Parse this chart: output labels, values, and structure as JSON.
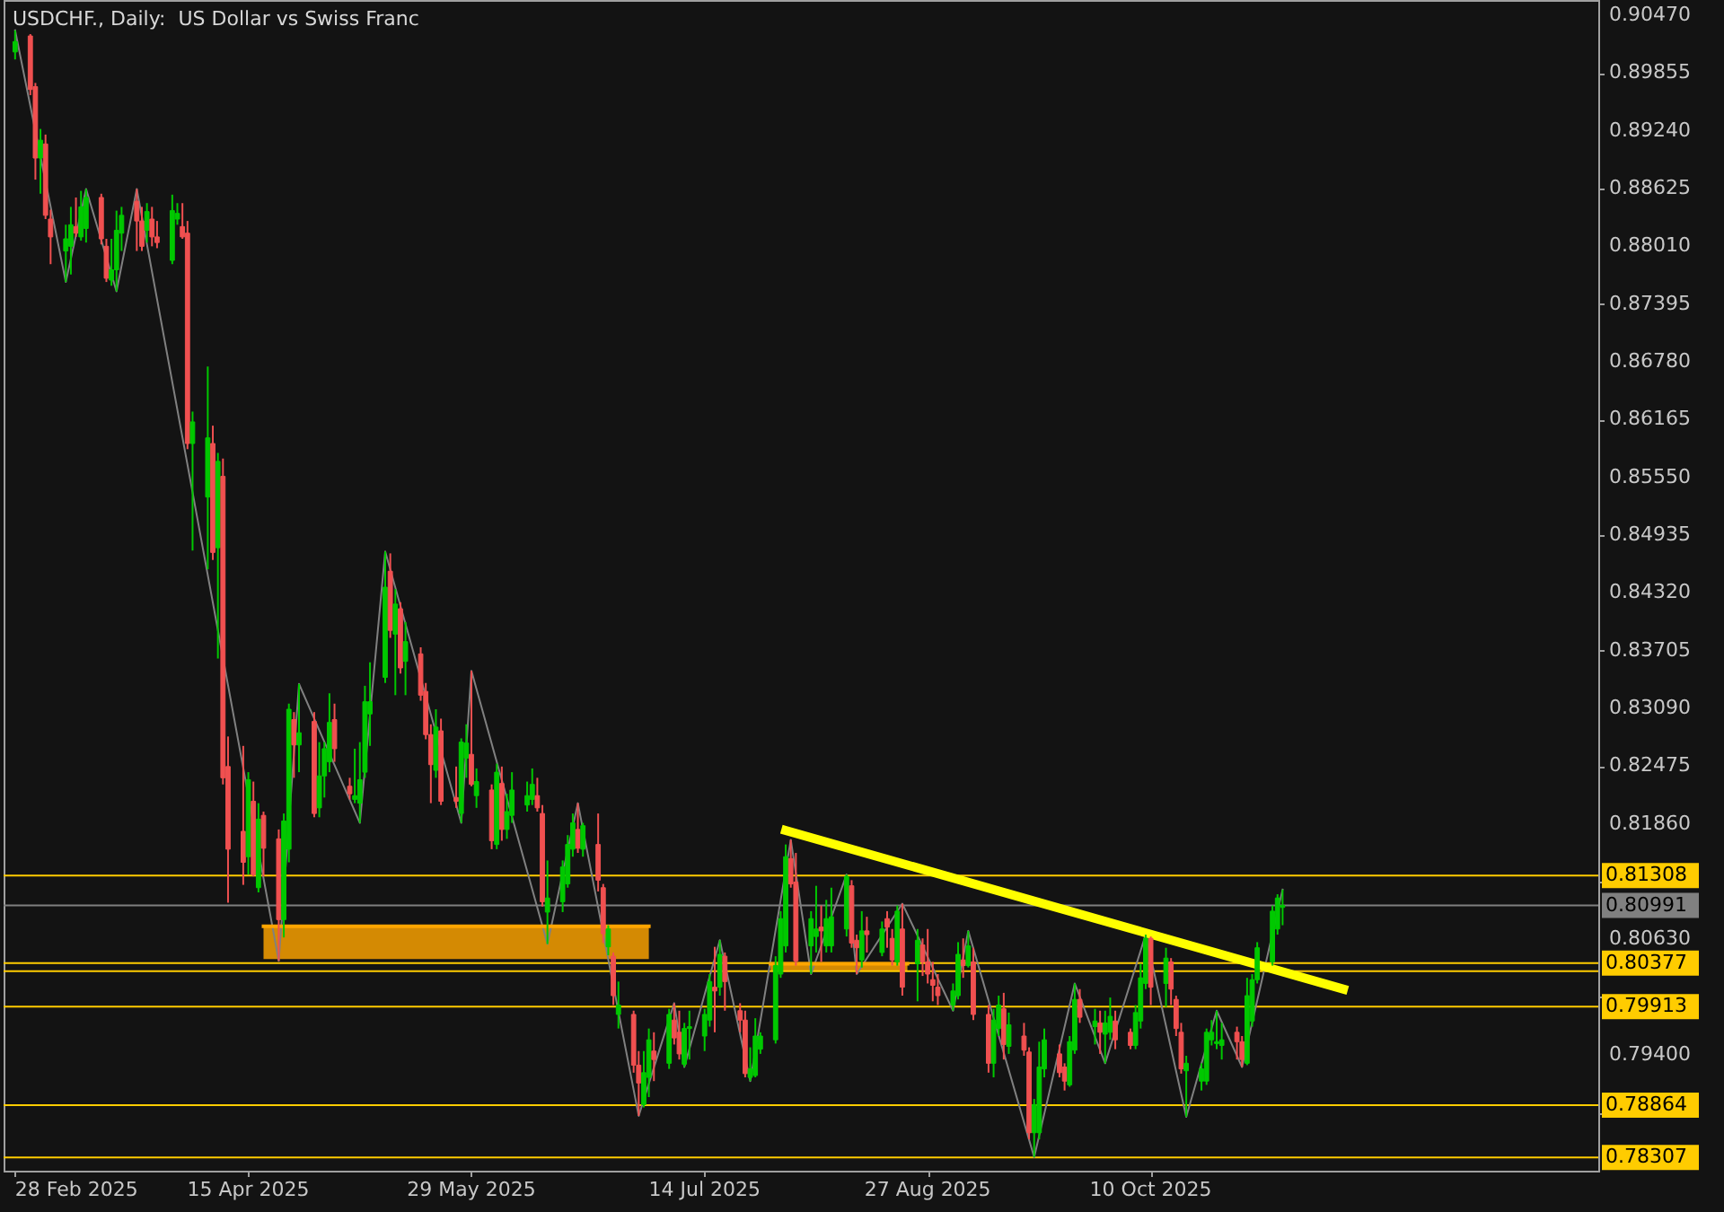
{
  "chart_data": {
    "type": "candlestick",
    "title": "USDCHF., Daily:  US Dollar vs Swiss Franc",
    "x": [
      "2025-02-28",
      "2025-03-03",
      "2025-03-04",
      "2025-03-05",
      "2025-03-06",
      "2025-03-07",
      "2025-03-10",
      "2025-03-11",
      "2025-03-12",
      "2025-03-13",
      "2025-03-14",
      "2025-03-17",
      "2025-03-18",
      "2025-03-19",
      "2025-03-20",
      "2025-03-21",
      "2025-03-24",
      "2025-03-25",
      "2025-03-26",
      "2025-03-27",
      "2025-03-28",
      "2025-03-31",
      "2025-04-01",
      "2025-04-02",
      "2025-04-03",
      "2025-04-04",
      "2025-04-07",
      "2025-04-08",
      "2025-04-09",
      "2025-04-10",
      "2025-04-11",
      "2025-04-14",
      "2025-04-15",
      "2025-04-16",
      "2025-04-17",
      "2025-04-18",
      "2025-04-21",
      "2025-04-22",
      "2025-04-23",
      "2025-04-24",
      "2025-04-25",
      "2025-04-28",
      "2025-04-29",
      "2025-04-30",
      "2025-05-01",
      "2025-05-02",
      "2025-05-05",
      "2025-05-06",
      "2025-05-07",
      "2025-05-08",
      "2025-05-09",
      "2025-05-12",
      "2025-05-13",
      "2025-05-14",
      "2025-05-15",
      "2025-05-16",
      "2025-05-19",
      "2025-05-20",
      "2025-05-21",
      "2025-05-22",
      "2025-05-23",
      "2025-05-26",
      "2025-05-27",
      "2025-05-28",
      "2025-05-29",
      "2025-05-30",
      "2025-06-02",
      "2025-06-03",
      "2025-06-04",
      "2025-06-05",
      "2025-06-06",
      "2025-06-09",
      "2025-06-10",
      "2025-06-11",
      "2025-06-12",
      "2025-06-13",
      "2025-06-16",
      "2025-06-17",
      "2025-06-18",
      "2025-06-19",
      "2025-06-20",
      "2025-06-23",
      "2025-06-24",
      "2025-06-25",
      "2025-06-26",
      "2025-06-27",
      "2025-06-30",
      "2025-07-01",
      "2025-07-02",
      "2025-07-03",
      "2025-07-04",
      "2025-07-07",
      "2025-07-08",
      "2025-07-09",
      "2025-07-10",
      "2025-07-11",
      "2025-07-14",
      "2025-07-15",
      "2025-07-16",
      "2025-07-17",
      "2025-07-18",
      "2025-07-21",
      "2025-07-22",
      "2025-07-23",
      "2025-07-24",
      "2025-07-25",
      "2025-07-28",
      "2025-07-29",
      "2025-07-30",
      "2025-07-31",
      "2025-08-01",
      "2025-08-04",
      "2025-08-05",
      "2025-08-06",
      "2025-08-07",
      "2025-08-08",
      "2025-08-11",
      "2025-08-12",
      "2025-08-13",
      "2025-08-14",
      "2025-08-15",
      "2025-08-18",
      "2025-08-19",
      "2025-08-20",
      "2025-08-21",
      "2025-08-22",
      "2025-08-25",
      "2025-08-26",
      "2025-08-27",
      "2025-08-28",
      "2025-08-29",
      "2025-09-01",
      "2025-09-02",
      "2025-09-03",
      "2025-09-04",
      "2025-09-05",
      "2025-09-08",
      "2025-09-09",
      "2025-09-10",
      "2025-09-11",
      "2025-09-12",
      "2025-09-15",
      "2025-09-16",
      "2025-09-17",
      "2025-09-18",
      "2025-09-19",
      "2025-09-22",
      "2025-09-23",
      "2025-09-24",
      "2025-09-25",
      "2025-09-26",
      "2025-09-29",
      "2025-09-30",
      "2025-10-01",
      "2025-10-02",
      "2025-10-03",
      "2025-10-06",
      "2025-10-07",
      "2025-10-08",
      "2025-10-09",
      "2025-10-10",
      "2025-10-13",
      "2025-10-14",
      "2025-10-15",
      "2025-10-16",
      "2025-10-17",
      "2025-10-20",
      "2025-10-21",
      "2025-10-22",
      "2025-10-23",
      "2025-10-24",
      "2025-10-27",
      "2025-10-28",
      "2025-10-29",
      "2025-10-30",
      "2025-10-31",
      "2025-11-03",
      "2025-11-04",
      "2025-11-05"
    ],
    "ohlc": [
      [
        0.9008,
        0.9031,
        0.9,
        0.9019
      ],
      [
        0.9025,
        0.9027,
        0.8962,
        0.8968
      ],
      [
        0.8971,
        0.8975,
        0.8872,
        0.8895
      ],
      [
        0.8895,
        0.8926,
        0.8857,
        0.8914
      ],
      [
        0.891,
        0.892,
        0.883,
        0.8834
      ],
      [
        0.883,
        0.884,
        0.8782,
        0.8811
      ],
      [
        0.8796,
        0.8824,
        0.8763,
        0.8809
      ],
      [
        0.8801,
        0.8843,
        0.8771,
        0.8824
      ],
      [
        0.8822,
        0.8853,
        0.8811,
        0.8815
      ],
      [
        0.8811,
        0.886,
        0.8807,
        0.8843
      ],
      [
        0.882,
        0.8862,
        0.8805,
        0.8853
      ],
      [
        0.8853,
        0.8857,
        0.8803,
        0.8809
      ],
      [
        0.8801,
        0.8809,
        0.8763,
        0.8767
      ],
      [
        0.8765,
        0.8809,
        0.8759,
        0.8776
      ],
      [
        0.8776,
        0.8839,
        0.8753,
        0.8818
      ],
      [
        0.8815,
        0.8843,
        0.8796,
        0.8834
      ],
      [
        0.8849,
        0.8862,
        0.8796,
        0.8828
      ],
      [
        0.8828,
        0.8843,
        0.8796,
        0.8801
      ],
      [
        0.8818,
        0.8847,
        0.8805,
        0.8838
      ],
      [
        0.883,
        0.8843,
        0.8801,
        0.8811
      ],
      [
        0.8811,
        0.8828,
        0.8799,
        0.8805
      ],
      [
        0.8786,
        0.8856,
        0.8782,
        0.8839
      ],
      [
        0.883,
        0.8847,
        0.8824,
        0.8836
      ],
      [
        0.8822,
        0.8847,
        0.8809,
        0.8811
      ],
      [
        0.8815,
        0.8828,
        0.8585,
        0.8591
      ],
      [
        0.8591,
        0.8625,
        0.8477,
        0.8614
      ],
      [
        0.8534,
        0.8673,
        0.8457,
        0.8597
      ],
      [
        0.8591,
        0.861,
        0.8467,
        0.8475
      ],
      [
        0.848,
        0.8581,
        0.8362,
        0.8572
      ],
      [
        0.8556,
        0.8575,
        0.8228,
        0.8235
      ],
      [
        0.8247,
        0.8279,
        0.8102,
        0.8159
      ],
      [
        0.8178,
        0.8269,
        0.8121,
        0.8145
      ],
      [
        0.8151,
        0.8241,
        0.8132,
        0.8233
      ],
      [
        0.821,
        0.8231,
        0.813,
        0.8132
      ],
      [
        0.8118,
        0.8208,
        0.8113,
        0.8191
      ],
      [
        0.8195,
        0.8199,
        0.813,
        0.816
      ],
      [
        0.817,
        0.818,
        0.804,
        0.8084
      ],
      [
        0.8084,
        0.8197,
        0.8065,
        0.8189
      ],
      [
        0.8159,
        0.8314,
        0.8145,
        0.8308
      ],
      [
        0.8297,
        0.8305,
        0.8235,
        0.827
      ],
      [
        0.827,
        0.8335,
        0.8241,
        0.8283
      ],
      [
        0.8295,
        0.8305,
        0.8193,
        0.8197
      ],
      [
        0.8203,
        0.8273,
        0.8193,
        0.8237
      ],
      [
        0.8237,
        0.8273,
        0.8214,
        0.8266
      ],
      [
        0.8252,
        0.8325,
        0.8241,
        0.8294
      ],
      [
        0.8297,
        0.8314,
        0.8252,
        0.8266
      ],
      [
        0.8226,
        0.8235,
        0.8212,
        0.8218
      ],
      [
        0.8212,
        0.8266,
        0.8208,
        0.8216
      ],
      [
        0.8208,
        0.8273,
        0.8187,
        0.8233
      ],
      [
        0.8241,
        0.8333,
        0.8235,
        0.8316
      ],
      [
        0.8303,
        0.8358,
        0.8269,
        0.8316
      ],
      [
        0.8342,
        0.8476,
        0.8336,
        0.8438
      ],
      [
        0.8455,
        0.8474,
        0.8384,
        0.8392
      ],
      [
        0.8388,
        0.8436,
        0.8323,
        0.842
      ],
      [
        0.8415,
        0.8422,
        0.8346,
        0.8352
      ],
      [
        0.8359,
        0.8401,
        0.8323,
        0.838
      ],
      [
        0.8367,
        0.8374,
        0.8317,
        0.8323
      ],
      [
        0.8327,
        0.8336,
        0.8276,
        0.8281
      ],
      [
        0.8281,
        0.8292,
        0.8208,
        0.8249
      ],
      [
        0.8243,
        0.8308,
        0.8235,
        0.8289
      ],
      [
        0.8285,
        0.8298,
        0.8206,
        0.821
      ],
      [
        0.8214,
        0.8247,
        0.8203,
        0.821
      ],
      [
        0.8197,
        0.8277,
        0.8187,
        0.8273
      ],
      [
        0.8256,
        0.8292,
        0.8235,
        0.8272
      ],
      [
        0.826,
        0.8349,
        0.8226,
        0.8228
      ],
      [
        0.8216,
        0.8245,
        0.8203,
        0.8231
      ],
      [
        0.8222,
        0.8228,
        0.8159,
        0.8168
      ],
      [
        0.8164,
        0.825,
        0.8159,
        0.8241
      ],
      [
        0.8229,
        0.8247,
        0.8168,
        0.818
      ],
      [
        0.818,
        0.8218,
        0.817,
        0.8199
      ],
      [
        0.8195,
        0.8241,
        0.8187,
        0.8222
      ],
      [
        0.8206,
        0.8231,
        0.8199,
        0.8216
      ],
      [
        0.8212,
        0.8245,
        0.8206,
        0.8228
      ],
      [
        0.8216,
        0.8235,
        0.8199,
        0.8203
      ],
      [
        0.8197,
        0.8206,
        0.8098,
        0.8103
      ],
      [
        0.8092,
        0.8147,
        0.8058,
        0.8107
      ],
      [
        0.8103,
        0.8147,
        0.8092,
        0.814
      ],
      [
        0.8122,
        0.8174,
        0.8118,
        0.8164
      ],
      [
        0.8159,
        0.8197,
        0.8151,
        0.8187
      ],
      [
        0.818,
        0.8208,
        0.8155,
        0.816
      ],
      [
        0.8159,
        0.8187,
        0.8151,
        0.8184
      ],
      [
        0.8164,
        0.8197,
        0.8114,
        0.8126
      ],
      [
        0.8118,
        0.8122,
        0.8059,
        0.8069
      ],
      [
        0.8055,
        0.8078,
        0.8046,
        0.8074
      ],
      [
        0.8045,
        0.8049,
        0.7993,
        0.8003
      ],
      [
        0.7983,
        0.8018,
        0.7968,
        0.7993
      ],
      [
        0.7983,
        0.7987,
        0.7921,
        0.7929
      ],
      [
        0.7929,
        0.7944,
        0.7875,
        0.791
      ],
      [
        0.7887,
        0.7944,
        0.7884,
        0.7921
      ],
      [
        0.7916,
        0.7968,
        0.7895,
        0.7956
      ],
      [
        0.7944,
        0.7964,
        0.7912,
        0.7935
      ],
      [
        0.7931,
        0.7989,
        0.7925,
        0.7983
      ],
      [
        0.7977,
        0.7995,
        0.7951,
        0.7958
      ],
      [
        0.7964,
        0.7987,
        0.7935,
        0.7941
      ],
      [
        0.793,
        0.7974,
        0.7927,
        0.7968
      ],
      [
        0.7968,
        0.7987,
        0.7935,
        0.797
      ],
      [
        0.796,
        0.7989,
        0.7944,
        0.7983
      ],
      [
        0.7977,
        0.8026,
        0.797,
        0.8018
      ],
      [
        0.8012,
        0.8055,
        0.7964,
        0.8008
      ],
      [
        0.8012,
        0.8062,
        0.8003,
        0.8047
      ],
      [
        0.8045,
        0.8049,
        0.7987,
        0.8018
      ],
      [
        0.7987,
        0.7995,
        0.7964,
        0.7977
      ],
      [
        0.7977,
        0.7987,
        0.7916,
        0.792
      ],
      [
        0.7916,
        0.7948,
        0.7912,
        0.7925
      ],
      [
        0.7918,
        0.7979,
        0.7916,
        0.796
      ],
      [
        0.7946,
        0.7964,
        0.7941,
        0.796
      ],
      [
        0.7956,
        0.8045,
        0.7952,
        0.8035
      ],
      [
        0.8026,
        0.8093,
        0.8022,
        0.8085
      ],
      [
        0.8056,
        0.8164,
        0.8049,
        0.8151
      ],
      [
        0.8149,
        0.8169,
        0.8118,
        0.8122
      ],
      [
        0.8124,
        0.8155,
        0.8035,
        0.804
      ],
      [
        0.8056,
        0.8093,
        0.8026,
        0.8085
      ],
      [
        0.8066,
        0.812,
        0.8049,
        0.8074
      ],
      [
        0.8076,
        0.8099,
        0.8039,
        0.8072
      ],
      [
        0.8056,
        0.8105,
        0.8049,
        0.8085
      ],
      [
        0.8056,
        0.8118,
        0.8049,
        0.8087
      ],
      [
        0.8074,
        0.8132,
        0.8066,
        0.813
      ],
      [
        0.812,
        0.8126,
        0.8054,
        0.8059
      ],
      [
        0.8062,
        0.8068,
        0.8026,
        0.8054
      ],
      [
        0.8041,
        0.8093,
        0.8033,
        0.8072
      ],
      [
        0.8072,
        0.8087,
        0.8049,
        0.8068
      ],
      [
        0.8049,
        0.8082,
        0.8045,
        0.8074
      ],
      [
        0.8085,
        0.8093,
        0.8054,
        0.8076
      ],
      [
        0.8064,
        0.8074,
        0.8035,
        0.8041
      ],
      [
        0.8039,
        0.8099,
        0.8035,
        0.8093
      ],
      [
        0.8074,
        0.8101,
        0.8003,
        0.8012
      ],
      [
        0.8037,
        0.8074,
        0.7997,
        0.8062
      ],
      [
        0.8057,
        0.8064,
        0.8024,
        0.8039
      ],
      [
        0.8039,
        0.8074,
        0.8016,
        0.8026
      ],
      [
        0.802,
        0.8039,
        0.7997,
        0.8014
      ],
      [
        0.8012,
        0.8026,
        0.7993,
        0.8003
      ],
      [
        0.7993,
        0.8016,
        0.7987,
        0.8008
      ],
      [
        0.8003,
        0.806,
        0.7999,
        0.8047
      ],
      [
        0.8041,
        0.8064,
        0.8022,
        0.8035
      ],
      [
        0.8035,
        0.8072,
        0.8033,
        0.8056
      ],
      [
        0.8039,
        0.8054,
        0.7977,
        0.7983
      ],
      [
        0.7983,
        0.7993,
        0.7921,
        0.7931
      ],
      [
        0.7931,
        0.7989,
        0.7916,
        0.7977
      ],
      [
        0.7968,
        0.8003,
        0.796,
        0.7993
      ],
      [
        0.7989,
        0.8006,
        0.7935,
        0.7951
      ],
      [
        0.7949,
        0.7985,
        0.7941,
        0.7972
      ],
      [
        0.796,
        0.7974,
        0.7939,
        0.7945
      ],
      [
        0.7943,
        0.7948,
        0.785,
        0.7857
      ],
      [
        0.7857,
        0.7893,
        0.7831,
        0.7887
      ],
      [
        0.7857,
        0.7954,
        0.785,
        0.7927
      ],
      [
        0.7925,
        0.7968,
        0.7916,
        0.7956
      ],
      [
        0.7941,
        0.7951,
        0.7916,
        0.7921
      ],
      [
        0.7927,
        0.7931,
        0.7902,
        0.7912
      ],
      [
        0.7908,
        0.796,
        0.7906,
        0.7954
      ],
      [
        0.7945,
        0.8016,
        0.7941,
        0.7999
      ],
      [
        0.7999,
        0.801,
        0.7974,
        0.798
      ],
      [
        0.797,
        0.7989,
        0.7951,
        0.7976
      ],
      [
        0.7974,
        0.7987,
        0.7941,
        0.7964
      ],
      [
        0.7962,
        0.7987,
        0.7931,
        0.7974
      ],
      [
        0.7964,
        0.8001,
        0.7956,
        0.7981
      ],
      [
        0.7976,
        0.7987,
        0.7946,
        0.7956
      ],
      [
        0.7964,
        0.7968,
        0.7946,
        0.795
      ],
      [
        0.795,
        0.7993,
        0.7946,
        0.7985
      ],
      [
        0.7976,
        0.8037,
        0.7968,
        0.8022
      ],
      [
        0.8016,
        0.8068,
        0.801,
        0.8064
      ],
      [
        0.8064,
        0.8066,
        0.7993,
        0.8012
      ],
      [
        0.8016,
        0.8054,
        0.7991,
        0.8043
      ],
      [
        0.8039,
        0.8043,
        0.7993,
        0.801
      ],
      [
        0.7999,
        0.8003,
        0.796,
        0.7968
      ],
      [
        0.7964,
        0.7974,
        0.792,
        0.7925
      ],
      [
        0.7923,
        0.7939,
        0.7874,
        0.7931
      ],
      [
        0.7912,
        0.7931,
        0.7902,
        0.7925
      ],
      [
        0.7912,
        0.7968,
        0.7908,
        0.7964
      ],
      [
        0.7956,
        0.7977,
        0.795,
        0.7964
      ],
      [
        0.7952,
        0.7987,
        0.7946,
        0.7954
      ],
      [
        0.795,
        0.7974,
        0.7935,
        0.7956
      ],
      [
        0.7964,
        0.797,
        0.7935,
        0.7954
      ],
      [
        0.7954,
        0.796,
        0.7927,
        0.7935
      ],
      [
        0.7931,
        0.8022,
        0.7929,
        0.8003
      ],
      [
        0.7976,
        0.8026,
        0.797,
        0.802
      ],
      [
        0.802,
        0.806,
        0.8016,
        0.8054
      ],
      [
        0.8039,
        0.8099,
        0.8035,
        0.8093
      ],
      [
        0.8074,
        0.8111,
        0.8068,
        0.8107
      ],
      [
        0.8097,
        0.8116,
        0.8078,
        0.80991
      ]
    ],
    "colors": [
      "#00c800",
      "#f05050",
      "#f05050",
      "#00c800",
      "#f05050",
      "#f05050",
      "#00c800",
      "#00c800",
      "#f05050",
      "#00c800",
      "#00c800",
      "#f05050",
      "#f05050",
      "#00c800",
      "#00c800",
      "#00c800",
      "#f05050",
      "#f05050",
      "#00c800",
      "#f05050",
      "#f05050",
      "#00c800",
      "#00c800",
      "#f05050",
      "#f05050",
      "#00c800",
      "#00c800",
      "#f05050",
      "#00c800",
      "#f05050",
      "#f05050",
      "#f05050",
      "#00c800",
      "#f05050",
      "#00c800",
      "#f05050",
      "#f05050",
      "#00c800",
      "#00c800",
      "#f05050",
      "#00c800",
      "#f05050",
      "#00c800",
      "#00c800",
      "#00c800",
      "#f05050",
      "#f05050",
      "#00c800",
      "#00c800",
      "#00c800",
      "#00c800",
      "#00c800",
      "#f05050",
      "#00c800",
      "#f05050",
      "#00c800",
      "#f05050",
      "#f05050",
      "#f05050",
      "#00c800",
      "#f05050",
      "#f05050",
      "#00c800",
      "#00c800",
      "#f05050",
      "#00c800",
      "#f05050",
      "#00c800",
      "#f05050",
      "#00c800",
      "#00c800",
      "#00c800",
      "#00c800",
      "#f05050",
      "#f05050",
      "#00c800",
      "#00c800",
      "#00c800",
      "#00c800",
      "#f05050",
      "#00c800",
      "#f05050",
      "#f05050",
      "#00c800",
      "#f05050",
      "#00c800",
      "#f05050",
      "#f05050",
      "#00c800",
      "#00c800",
      "#f05050",
      "#00c800",
      "#f05050",
      "#f05050",
      "#00c800",
      "#00c800",
      "#00c800",
      "#00c800",
      "#f05050",
      "#00c800",
      "#f05050",
      "#f05050",
      "#f05050",
      "#00c800",
      "#00c800",
      "#00c800",
      "#00c800",
      "#00c800",
      "#00c800",
      "#f05050",
      "#f05050",
      "#00c800",
      "#00c800",
      "#f05050",
      "#00c800",
      "#00c800",
      "#00c800",
      "#f05050",
      "#f05050",
      "#00c800",
      "#f05050",
      "#00c800",
      "#f05050",
      "#f05050",
      "#00c800",
      "#f05050",
      "#00c800",
      "#f05050",
      "#f05050",
      "#f05050",
      "#f05050",
      "#00c800",
      "#00c800",
      "#f05050",
      "#00c800",
      "#f05050",
      "#f05050",
      "#00c800",
      "#00c800",
      "#f05050",
      "#00c800",
      "#f05050",
      "#f05050",
      "#00c800",
      "#00c800",
      "#00c800",
      "#f05050",
      "#f05050",
      "#00c800",
      "#00c800",
      "#f05050",
      "#00c800",
      "#f05050",
      "#00c800",
      "#00c800",
      "#f05050",
      "#f05050",
      "#00c800",
      "#00c800",
      "#00c800",
      "#f05050",
      "#00c800",
      "#f05050",
      "#f05050",
      "#f05050",
      "#00c800",
      "#00c800",
      "#00c800",
      "#00c800",
      "#00c800",
      "#00c800",
      "#f05050",
      "#f05050",
      "#00c800",
      "#00c800",
      "#00c800",
      "#00c800",
      "#00c800",
      "#00c800"
    ],
    "series": [
      {
        "type": "line",
        "color": "#808080",
        "x": [
          "2025-02-28",
          "2025-03-10",
          "2025-03-14",
          "2025-03-20",
          "2025-03-24",
          "2025-04-21",
          "2025-04-25",
          "2025-05-07",
          "2025-05-12",
          "2025-05-27",
          "2025-05-29",
          "2025-06-13",
          "2025-06-19",
          "2025-07-01",
          "2025-07-08",
          "2025-07-10",
          "2025-07-17",
          "2025-07-23",
          "2025-07-31",
          "2025-08-04",
          "2025-08-11",
          "2025-08-13",
          "2025-08-22",
          "2025-09-01",
          "2025-09-04",
          "2025-09-17",
          "2025-09-25",
          "2025-10-01",
          "2025-10-09",
          "2025-10-17",
          "2025-10-23",
          "2025-10-28",
          "2025-11-05"
        ],
        "values": [
          0.9031,
          0.8763,
          0.8862,
          0.8753,
          0.8862,
          0.804,
          0.8335,
          0.8187,
          0.8476,
          0.8187,
          0.8349,
          0.8058,
          0.8208,
          0.7875,
          0.7995,
          0.7927,
          0.8062,
          0.7912,
          0.8169,
          0.8026,
          0.8132,
          0.8026,
          0.8101,
          0.7987,
          0.8072,
          0.7831,
          0.8016,
          0.7931,
          0.8068,
          0.7874,
          0.7987,
          0.7927,
          0.8116
        ]
      },
      {
        "type": "line",
        "color": "#ffff00",
        "x": [
          "2025-07-30",
          "2025-11-17"
        ],
        "values": [
          0.8179,
          0.801
        ]
      },
      {
        "type": "line",
        "color": "#ffa500",
        "x": [
          "2025-04-18",
          "2025-07-03"
        ],
        "values": [
          0.8077,
          0.8077
        ],
        "lower": [
          0.8042,
          0.8042
        ],
        "upper": [
          0.8077,
          0.8077
        ]
      },
      {
        "type": "line",
        "color": "#ffa500",
        "x": [
          "2025-07-27",
          "2025-08-23"
        ],
        "values": [
          0.8037,
          0.8037
        ],
        "lower": [
          0.8029,
          0.8029
        ],
        "upper": [
          0.8037,
          0.8037
        ]
      }
    ],
    "xlim": [
      "2025-02-27T12:00",
      "2026-01-04T12:00"
    ],
    "xticks": [
      {
        "value": "2025-02-28",
        "label": "28 Feb 2025"
      },
      {
        "value": "2025-04-15",
        "label": "15 Apr 2025"
      },
      {
        "value": "2025-05-29",
        "label": "29 May 2025"
      },
      {
        "value": "2025-07-14",
        "label": "14 Jul 2025"
      },
      {
        "value": "2025-08-27",
        "label": "27 Aug 2025"
      },
      {
        "value": "2025-10-10",
        "label": "10 Oct 2025"
      }
    ],
    "ylim": [
      0.78166,
      0.90633
    ],
    "yticks": [
      {
        "value": 0.9047,
        "label": "0.90470"
      },
      0.89855,
      {
        "value": 0.8924,
        "label": "0.89240"
      },
      0.88625,
      {
        "value": 0.8801,
        "label": "0.88010"
      },
      0.87395,
      {
        "value": 0.8678,
        "label": "0.86780"
      },
      0.86165,
      {
        "value": 0.8555,
        "label": "0.85550"
      },
      0.84935,
      {
        "value": 0.8432,
        "label": "0.84320"
      },
      0.83705,
      {
        "value": 0.8309,
        "label": "0.83090"
      },
      0.82475,
      {
        "value": 0.8186,
        "label": "0.81860"
      },
      {
        "value": 0.81245,
        "label": null
      },
      {
        "value": 0.8063,
        "label": "0.80630"
      },
      {
        "value": 0.80015,
        "label": null
      },
      {
        "value": 0.794,
        "label": "0.79400"
      },
      {
        "value": 0.78785,
        "label": null
      }
    ],
    "ref_lines": [
      {
        "axis": "y",
        "value": 0.81308,
        "label": "0.81308",
        "color": "#ffcc00"
      },
      {
        "axis": "y",
        "value": 0.80991,
        "label": "0.80991",
        "color": "#808080"
      },
      {
        "axis": "y",
        "value": 0.80377,
        "label": "0.80377",
        "color": "#ffcc00"
      },
      {
        "axis": "y",
        "value": 0.8029,
        "color": "#ffcc00"
      },
      {
        "axis": "y",
        "value": 0.79913,
        "label": "0.79913",
        "color": "#ffcc00"
      },
      {
        "axis": "y",
        "value": 0.78864,
        "label": "0.78864",
        "color": "#ffcc00"
      },
      {
        "axis": "y",
        "value": 0.78307,
        "label": "0.78307",
        "color": "#ffcc00"
      }
    ]
  }
}
